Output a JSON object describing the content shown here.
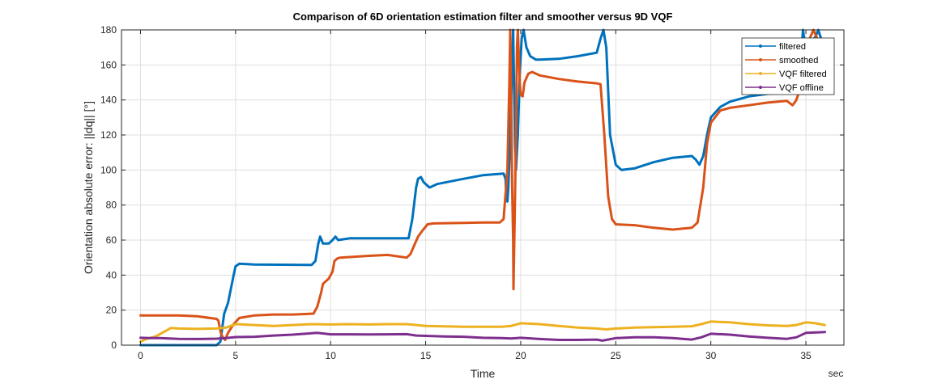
{
  "chart_data": {
    "type": "line",
    "title": "Comparison of 6D orientation estimation filter and smoother versus 9D VQF",
    "xlabel": "Time",
    "xunit": "sec",
    "ylabel": "Orientation absolute error: ||dq|| [°]",
    "xlim": [
      -1,
      37
    ],
    "ylim": [
      0,
      180
    ],
    "xticks": [
      0,
      5,
      10,
      15,
      20,
      25,
      30,
      35
    ],
    "yticks": [
      0,
      20,
      40,
      60,
      80,
      100,
      120,
      140,
      160,
      180
    ],
    "grid": true,
    "legend_position": "top-right",
    "series": [
      {
        "name": "filtered",
        "color": "#0072BD",
        "points": [
          [
            0,
            0
          ],
          [
            4.0,
            0
          ],
          [
            4.2,
            2
          ],
          [
            4.4,
            18
          ],
          [
            4.6,
            24
          ],
          [
            4.9,
            40
          ],
          [
            5.0,
            45
          ],
          [
            5.2,
            46.5
          ],
          [
            6,
            46
          ],
          [
            9.0,
            45.8
          ],
          [
            9.2,
            48
          ],
          [
            9.35,
            58
          ],
          [
            9.45,
            62
          ],
          [
            9.6,
            58
          ],
          [
            9.9,
            58
          ],
          [
            10.1,
            60
          ],
          [
            10.25,
            62
          ],
          [
            10.4,
            60
          ],
          [
            11,
            61
          ],
          [
            13,
            61
          ],
          [
            14.1,
            61
          ],
          [
            14.3,
            72
          ],
          [
            14.5,
            90
          ],
          [
            14.6,
            95
          ],
          [
            14.75,
            96
          ],
          [
            14.9,
            93
          ],
          [
            15.2,
            90
          ],
          [
            15.6,
            92
          ],
          [
            17,
            95
          ],
          [
            18,
            97
          ],
          [
            19.1,
            98
          ],
          [
            19.2,
            95
          ],
          [
            19.25,
            83
          ],
          [
            19.3,
            82
          ],
          [
            19.35,
            90
          ],
          [
            19.45,
            120
          ],
          [
            19.55,
            160
          ],
          [
            19.6,
            180
          ],
          [
            19.65,
            150
          ],
          [
            19.7,
            115
          ],
          [
            19.75,
            100
          ],
          [
            19.85,
            120
          ],
          [
            19.95,
            155
          ],
          [
            20.05,
            175
          ],
          [
            20.15,
            180
          ],
          [
            20.3,
            170
          ],
          [
            20.5,
            165
          ],
          [
            20.8,
            163
          ],
          [
            21,
            163
          ],
          [
            22,
            163.5
          ],
          [
            23,
            165
          ],
          [
            24,
            167
          ],
          [
            24.2,
            175
          ],
          [
            24.35,
            180
          ],
          [
            24.5,
            170
          ],
          [
            24.7,
            120
          ],
          [
            25,
            103
          ],
          [
            25.3,
            100
          ],
          [
            26,
            101
          ],
          [
            27,
            104.5
          ],
          [
            28,
            107
          ],
          [
            29,
            108
          ],
          [
            29.2,
            106
          ],
          [
            29.4,
            103
          ],
          [
            29.6,
            108
          ],
          [
            29.8,
            120
          ],
          [
            30,
            130
          ],
          [
            30.5,
            136
          ],
          [
            31,
            139
          ],
          [
            32,
            142
          ],
          [
            33,
            143.5
          ],
          [
            34,
            144
          ],
          [
            34.4,
            147
          ],
          [
            34.7,
            160
          ],
          [
            34.85,
            180
          ],
          [
            35,
            168
          ],
          [
            35.2,
            172
          ],
          [
            35.35,
            174
          ],
          [
            35.5,
            176
          ],
          [
            35.65,
            180
          ],
          [
            35.8,
            175
          ],
          [
            35.95,
            171
          ]
        ]
      },
      {
        "name": "smoothed",
        "color": "#D95319",
        "points": [
          [
            0,
            17
          ],
          [
            1,
            17
          ],
          [
            2,
            17
          ],
          [
            3,
            16.5
          ],
          [
            4,
            15
          ],
          [
            4.1,
            14
          ],
          [
            4.2,
            8
          ],
          [
            4.3,
            5
          ],
          [
            4.45,
            3
          ],
          [
            4.6,
            7
          ],
          [
            4.9,
            12
          ],
          [
            5.2,
            15.5
          ],
          [
            6,
            17
          ],
          [
            7,
            17.5
          ],
          [
            8,
            17.5
          ],
          [
            9.1,
            18
          ],
          [
            9.3,
            22
          ],
          [
            9.5,
            30
          ],
          [
            9.6,
            35
          ],
          [
            9.9,
            38
          ],
          [
            10.1,
            42
          ],
          [
            10.2,
            48
          ],
          [
            10.35,
            49.5
          ],
          [
            10.5,
            50
          ],
          [
            12,
            51
          ],
          [
            13,
            51.5
          ],
          [
            14,
            50
          ],
          [
            14.2,
            52
          ],
          [
            14.4,
            57
          ],
          [
            14.6,
            62
          ],
          [
            14.8,
            65
          ],
          [
            15.1,
            69
          ],
          [
            15.4,
            69.5
          ],
          [
            17,
            69.8
          ],
          [
            18,
            70
          ],
          [
            18.9,
            70
          ],
          [
            19.1,
            72
          ],
          [
            19.3,
            100
          ],
          [
            19.4,
            150
          ],
          [
            19.45,
            180
          ],
          [
            19.5,
            140
          ],
          [
            19.55,
            90
          ],
          [
            19.6,
            60
          ],
          [
            19.62,
            32
          ],
          [
            19.68,
            70
          ],
          [
            19.75,
            120
          ],
          [
            19.8,
            170
          ],
          [
            19.85,
            180
          ],
          [
            19.95,
            150
          ],
          [
            20,
            143
          ],
          [
            20.1,
            142
          ],
          [
            20.2,
            150
          ],
          [
            20.4,
            155
          ],
          [
            20.6,
            156
          ],
          [
            21,
            154
          ],
          [
            22,
            152
          ],
          [
            23,
            150.5
          ],
          [
            24,
            149.5
          ],
          [
            24.2,
            149
          ],
          [
            24.4,
            120
          ],
          [
            24.6,
            85
          ],
          [
            24.8,
            72
          ],
          [
            25,
            69
          ],
          [
            26,
            68.5
          ],
          [
            27,
            67
          ],
          [
            28,
            66
          ],
          [
            29,
            67
          ],
          [
            29.3,
            70
          ],
          [
            29.6,
            90
          ],
          [
            29.8,
            115
          ],
          [
            30,
            127
          ],
          [
            30.5,
            134
          ],
          [
            31,
            135.5
          ],
          [
            32,
            137
          ],
          [
            33,
            138.5
          ],
          [
            34,
            139.5
          ],
          [
            34.3,
            137
          ],
          [
            34.5,
            140
          ],
          [
            34.8,
            150
          ],
          [
            35,
            168
          ],
          [
            35.2,
            175
          ],
          [
            35.4,
            180
          ],
          [
            35.6,
            175
          ],
          [
            35.8,
            170
          ],
          [
            35.95,
            170
          ]
        ]
      },
      {
        "name": "VQF filtered",
        "color": "#EDB120",
        "points": [
          [
            0,
            2
          ],
          [
            0.3,
            3.5
          ],
          [
            0.8,
            5
          ],
          [
            1.3,
            8
          ],
          [
            1.6,
            9.8
          ],
          [
            2,
            9.5
          ],
          [
            3,
            9.3
          ],
          [
            4,
            9.5
          ],
          [
            4.5,
            10
          ],
          [
            5,
            12
          ],
          [
            6,
            11.5
          ],
          [
            7,
            11
          ],
          [
            8,
            11.5
          ],
          [
            9,
            12
          ],
          [
            10,
            11.8
          ],
          [
            11,
            12
          ],
          [
            12,
            11.8
          ],
          [
            13,
            12
          ],
          [
            14,
            12
          ],
          [
            15,
            11
          ],
          [
            16,
            10.7
          ],
          [
            17,
            10.5
          ],
          [
            18,
            10.5
          ],
          [
            19,
            10.5
          ],
          [
            19.5,
            11
          ],
          [
            20,
            12.5
          ],
          [
            21,
            12
          ],
          [
            22,
            11
          ],
          [
            23,
            10
          ],
          [
            24,
            9.5
          ],
          [
            24.5,
            9
          ],
          [
            25,
            9.5
          ],
          [
            26,
            10
          ],
          [
            27,
            10.3
          ],
          [
            28,
            10.5
          ],
          [
            29,
            10.8
          ],
          [
            29.5,
            12
          ],
          [
            30,
            13.5
          ],
          [
            31,
            13
          ],
          [
            32,
            12
          ],
          [
            33,
            11.3
          ],
          [
            34,
            11
          ],
          [
            34.5,
            11.5
          ],
          [
            35,
            13
          ],
          [
            35.5,
            12.5
          ],
          [
            36,
            11.5
          ]
        ]
      },
      {
        "name": "VQF offline",
        "color": "#7E2F8E",
        "points": [
          [
            0,
            4.2
          ],
          [
            0.5,
            4
          ],
          [
            1,
            4
          ],
          [
            2,
            3.6
          ],
          [
            3,
            3.5
          ],
          [
            4,
            3.7
          ],
          [
            4.5,
            4
          ],
          [
            5,
            4.6
          ],
          [
            6,
            4.8
          ],
          [
            7,
            5.5
          ],
          [
            8,
            6
          ],
          [
            9,
            6.8
          ],
          [
            9.3,
            7
          ],
          [
            10,
            6.2
          ],
          [
            11,
            6.2
          ],
          [
            12,
            6.1
          ],
          [
            13,
            6.2
          ],
          [
            14,
            6.3
          ],
          [
            14.5,
            5.5
          ],
          [
            15,
            5.3
          ],
          [
            16,
            5
          ],
          [
            17,
            4.8
          ],
          [
            18,
            4.2
          ],
          [
            19,
            4
          ],
          [
            19.5,
            3.8
          ],
          [
            20,
            4.2
          ],
          [
            21,
            3.5
          ],
          [
            22,
            3
          ],
          [
            23,
            3
          ],
          [
            24,
            3.2
          ],
          [
            24.3,
            2.6
          ],
          [
            25,
            4
          ],
          [
            26,
            4.5
          ],
          [
            27,
            4.5
          ],
          [
            28,
            4
          ],
          [
            29,
            3.2
          ],
          [
            29.5,
            4.5
          ],
          [
            30,
            6.5
          ],
          [
            31,
            6
          ],
          [
            32,
            5
          ],
          [
            33,
            4.2
          ],
          [
            34,
            3.6
          ],
          [
            34.5,
            4.5
          ],
          [
            35,
            7
          ],
          [
            36,
            7.5
          ]
        ]
      }
    ]
  }
}
